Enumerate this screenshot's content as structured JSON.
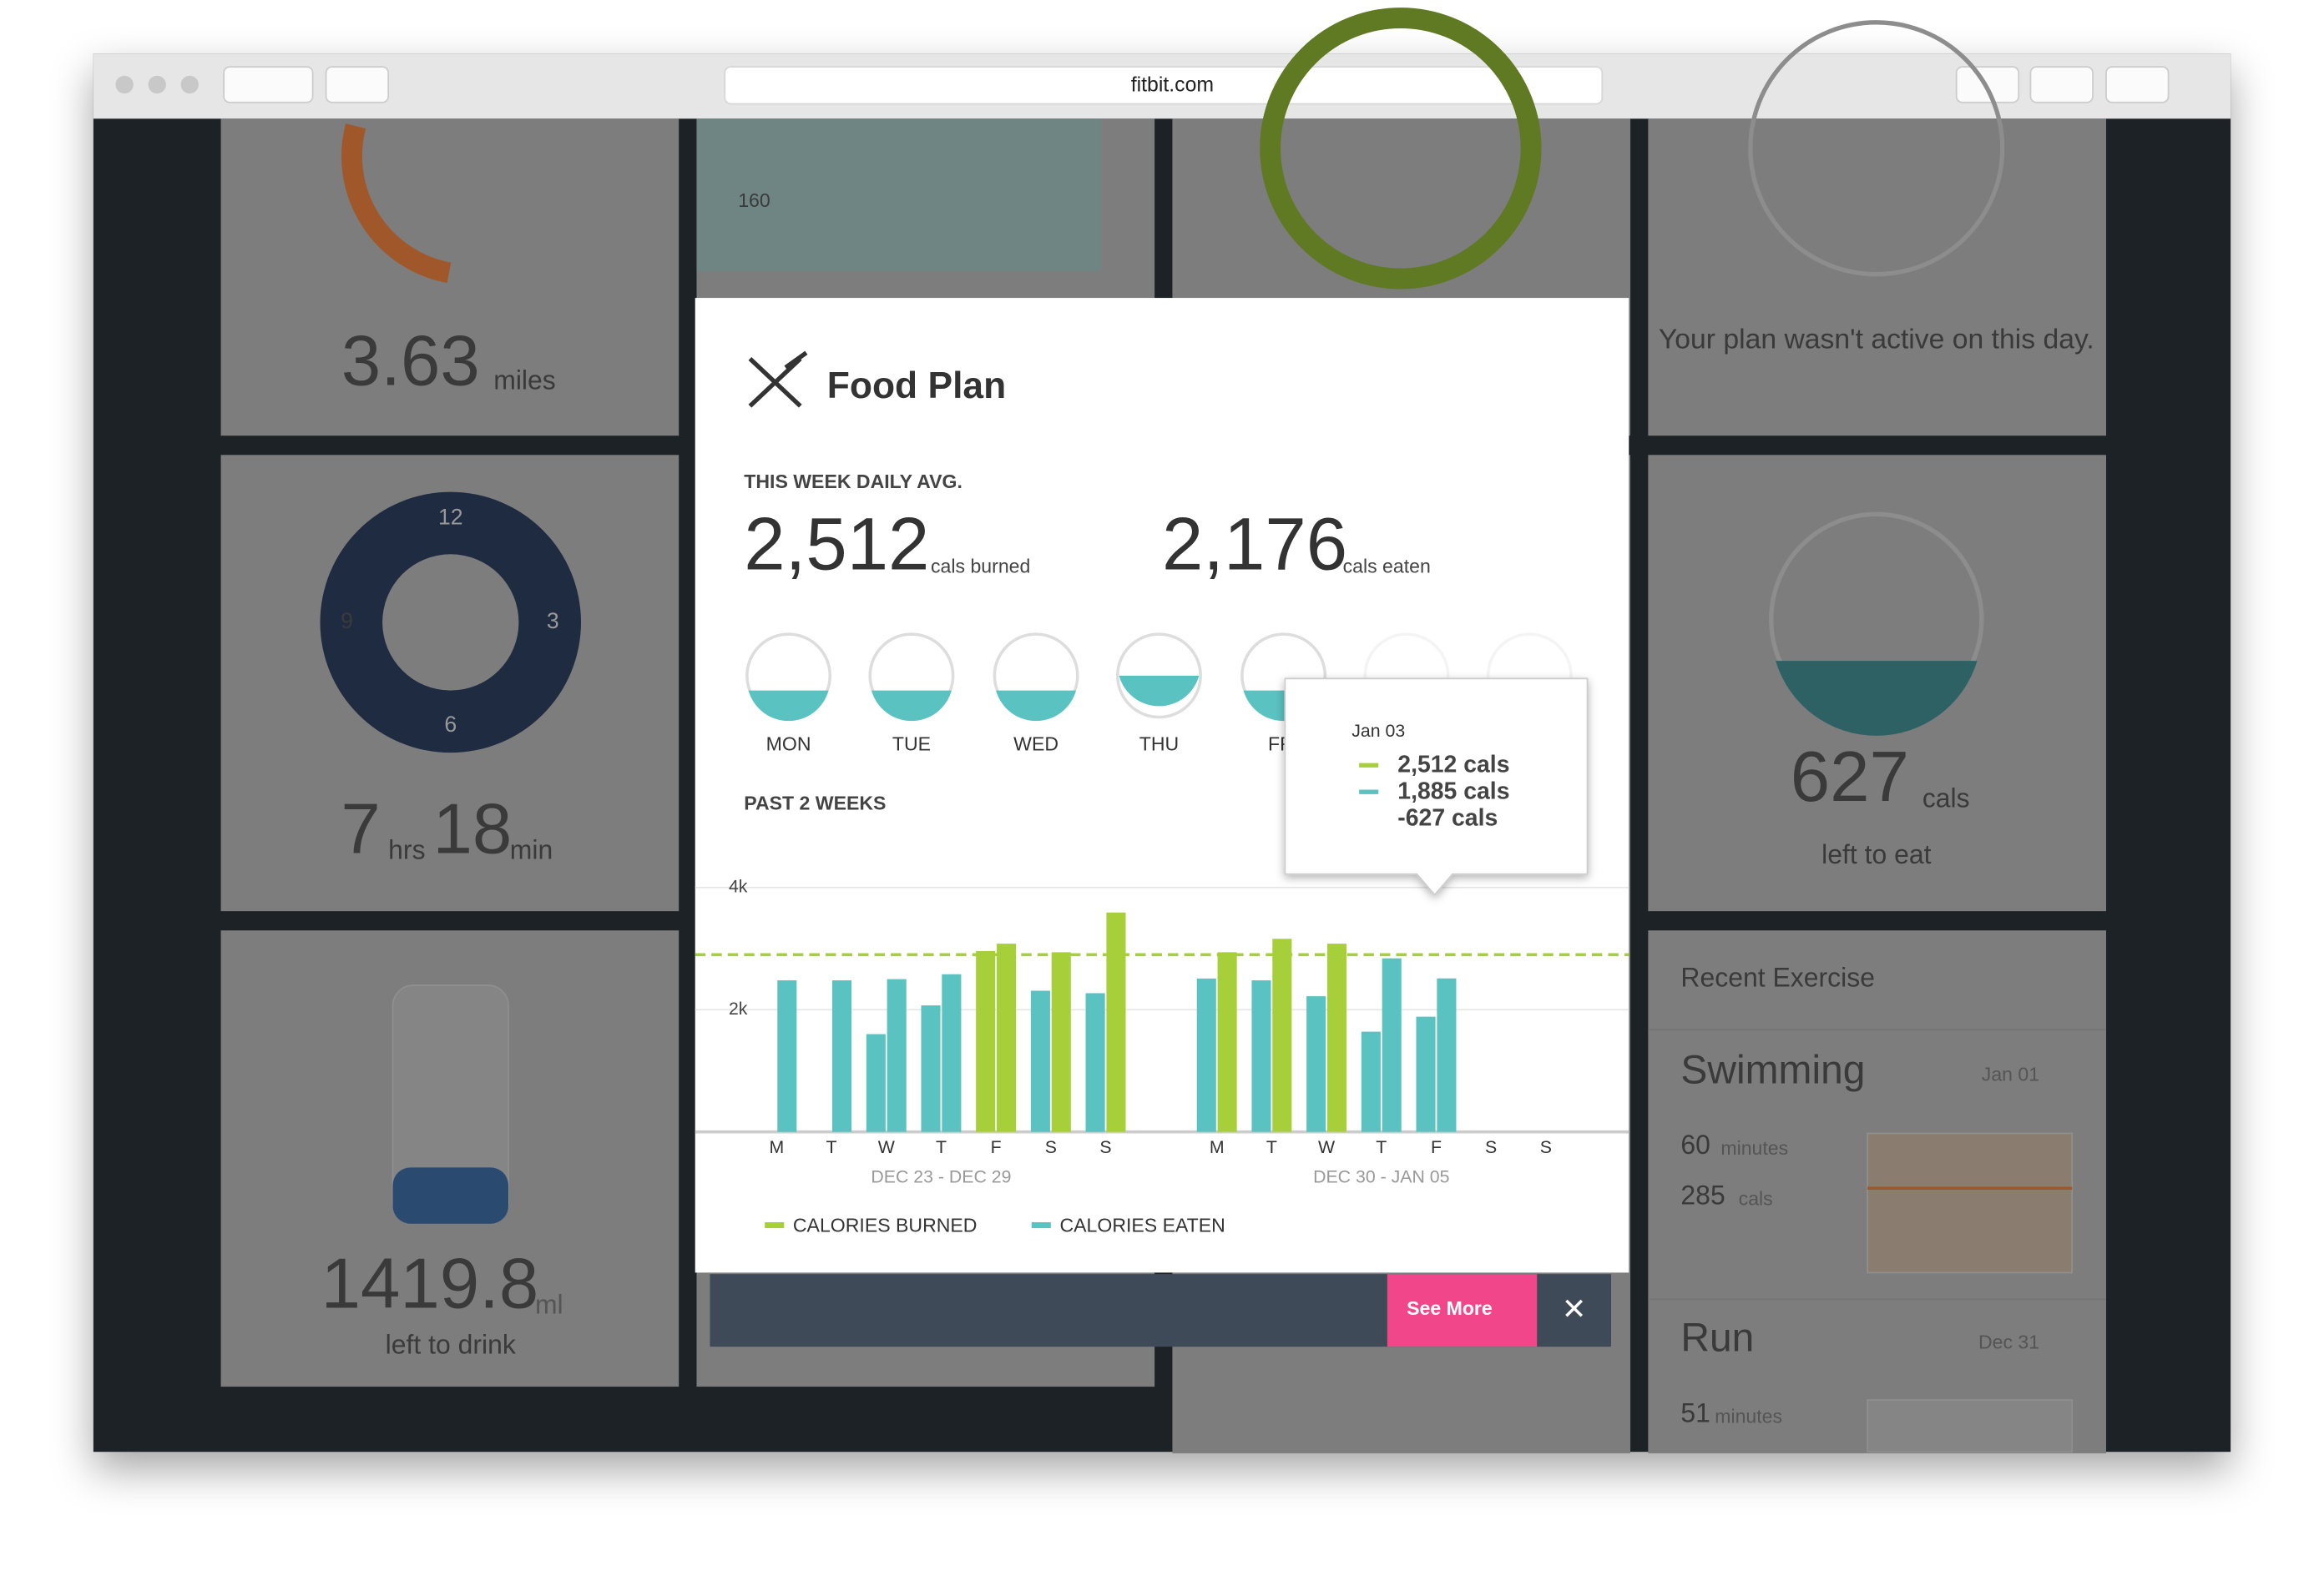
{
  "browser": {
    "url": "fitbit.com"
  },
  "tiles": {
    "distance": {
      "value": "3.63",
      "unit": "miles"
    },
    "weight": {
      "tick": "160"
    },
    "plan": {
      "message": "Your plan wasn't active on this day."
    },
    "sleep": {
      "dial": [
        "12",
        "3",
        "6",
        "9"
      ],
      "hours": "7",
      "hours_unit": "hrs",
      "minutes": "18",
      "minutes_unit": "min"
    },
    "food": {
      "value": "627",
      "unit": "cals",
      "caption": "left to eat"
    },
    "water": {
      "value": "1419.8",
      "unit": "ml",
      "caption": "left to drink"
    },
    "exercise": {
      "title": "Recent Exercise",
      "items": [
        {
          "name": "Swimming",
          "date": "Jan 01",
          "minutes": "60",
          "minutes_unit": "minutes",
          "cals": "285",
          "cals_unit": "cals"
        },
        {
          "name": "Run",
          "date": "Dec 31",
          "minutes": "51",
          "minutes_unit": "minutes"
        }
      ]
    }
  },
  "modal": {
    "title": "Food Plan",
    "avg_label": "THIS WEEK DAILY AVG.",
    "burned": "2,512",
    "burned_unit": "cals burned",
    "eaten": "2,176",
    "eaten_unit": "cals eaten",
    "days": [
      "MON",
      "TUE",
      "WED",
      "THU",
      "FRI"
    ],
    "past_label": "PAST 2 WEEKS",
    "tooltip": {
      "date": "Jan 03",
      "burned": "2,512 cals",
      "eaten": "1,885 cals",
      "net": "-627 cals"
    },
    "see_more": "See More"
  },
  "chart_data": {
    "type": "bar",
    "ylim": [
      0,
      4000
    ],
    "yticks": [
      {
        "value": 2000,
        "label": "2k"
      },
      {
        "value": 4000,
        "label": "4k"
      }
    ],
    "grid": true,
    "goal": 2900,
    "goal_color": "#a6cf3a",
    "categories": [
      "M",
      "T",
      "W",
      "T",
      "F",
      "S",
      "S",
      "M",
      "T",
      "W",
      "T",
      "F",
      "S",
      "S"
    ],
    "groups": [
      "DEC 23 - DEC 29",
      "DEC 30 - JAN 05"
    ],
    "series": [
      {
        "name": "CALORIES EATEN",
        "color": "#5bc2c2",
        "values": [
          null,
          null,
          1600,
          2070,
          2960,
          2310,
          2270,
          2510,
          2480,
          2220,
          1640,
          1885,
          null,
          null
        ],
        "colors": [
          null,
          null,
          "#5bc2c2",
          "#5bc2c2",
          "#a6cf3a",
          "#5bc2c2",
          "#5bc2c2",
          "#5bc2c2",
          "#5bc2c2",
          "#5bc2c2",
          "#5bc2c2",
          "#5bc2c2",
          null,
          null
        ]
      },
      {
        "name": "CALORIES BURNED",
        "color": "#a6cf3a",
        "values": [
          2480,
          2480,
          2500,
          2580,
          3080,
          2940,
          3590,
          2940,
          3160,
          3080,
          2840,
          2512,
          null,
          null
        ],
        "colors": [
          "#5bc2c2",
          "#5bc2c2",
          "#5bc2c2",
          "#5bc2c2",
          "#a6cf3a",
          "#a6cf3a",
          "#a6cf3a",
          "#a6cf3a",
          "#a6cf3a",
          "#a6cf3a",
          "#5bc2c2",
          "#5bc2c2",
          null,
          null
        ]
      }
    ]
  }
}
